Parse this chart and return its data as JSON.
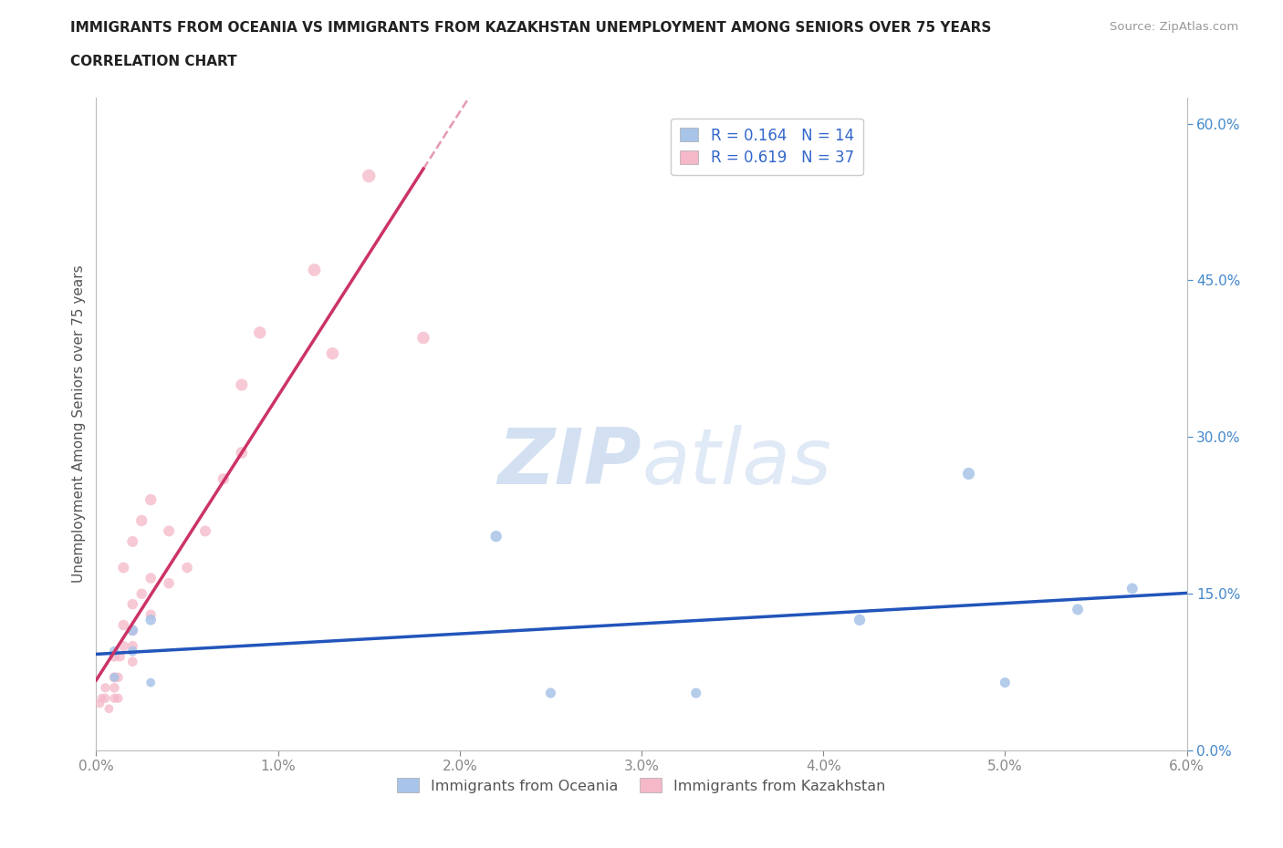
{
  "title_line1": "IMMIGRANTS FROM OCEANIA VS IMMIGRANTS FROM KAZAKHSTAN UNEMPLOYMENT AMONG SENIORS OVER 75 YEARS",
  "title_line2": "CORRELATION CHART",
  "source_text": "Source: ZipAtlas.com",
  "ylabel": "Unemployment Among Seniors over 75 years",
  "xmin": 0.0,
  "xmax": 0.06,
  "ymin": 0.0,
  "ymax": 0.625,
  "right_yticks": [
    0.0,
    0.15,
    0.3,
    0.45,
    0.6
  ],
  "right_yticklabels": [
    "0.0%",
    "15.0%",
    "30.0%",
    "45.0%",
    "60.0%"
  ],
  "xticks": [
    0.0,
    0.01,
    0.02,
    0.03,
    0.04,
    0.05,
    0.06
  ],
  "xticklabels": [
    "0.0%",
    "1.0%",
    "2.0%",
    "3.0%",
    "4.0%",
    "5.0%",
    "6.0%"
  ],
  "grid_color": "#cccccc",
  "watermark_zip": "ZIP",
  "watermark_atlas": "atlas",
  "watermark_color": "#c8d8f0",
  "legend_R1": "R = 0.164",
  "legend_N1": "N = 14",
  "legend_R2": "R = 0.619",
  "legend_N2": "N = 37",
  "legend_label1": "Immigrants from Oceania",
  "legend_label2": "Immigrants from Kazakhstan",
  "color_oceania": "#a8c4e8",
  "color_kazakhstan": "#f4b8c8",
  "trendline_oceania": "#2255bb",
  "trendline_kazakhstan": "#cc3366",
  "oceania_x": [
    0.001,
    0.001,
    0.002,
    0.002,
    0.003,
    0.003,
    0.022,
    0.025,
    0.033,
    0.042,
    0.048,
    0.05,
    0.054,
    0.057
  ],
  "oceania_y": [
    0.095,
    0.07,
    0.115,
    0.095,
    0.065,
    0.125,
    0.205,
    0.055,
    0.055,
    0.125,
    0.265,
    0.065,
    0.135,
    0.155
  ],
  "kazakhstan_x": [
    0.0002,
    0.0003,
    0.0005,
    0.0005,
    0.0007,
    0.001,
    0.001,
    0.001,
    0.001,
    0.0012,
    0.0012,
    0.0013,
    0.0015,
    0.0015,
    0.0015,
    0.002,
    0.002,
    0.002,
    0.002,
    0.002,
    0.0025,
    0.0025,
    0.003,
    0.003,
    0.003,
    0.004,
    0.004,
    0.005,
    0.006,
    0.007,
    0.008,
    0.008,
    0.009,
    0.012,
    0.013,
    0.015,
    0.018
  ],
  "kazakhstan_y": [
    0.045,
    0.05,
    0.05,
    0.06,
    0.04,
    0.05,
    0.06,
    0.07,
    0.09,
    0.05,
    0.07,
    0.09,
    0.1,
    0.12,
    0.175,
    0.085,
    0.1,
    0.115,
    0.14,
    0.2,
    0.15,
    0.22,
    0.13,
    0.165,
    0.24,
    0.16,
    0.21,
    0.175,
    0.21,
    0.26,
    0.285,
    0.35,
    0.4,
    0.46,
    0.38,
    0.55,
    0.395
  ],
  "oceania_sizes": [
    60,
    50,
    70,
    60,
    50,
    70,
    80,
    65,
    65,
    80,
    90,
    65,
    75,
    75
  ],
  "kazakhstan_sizes": [
    50,
    50,
    55,
    55,
    50,
    55,
    60,
    65,
    70,
    55,
    60,
    65,
    65,
    70,
    75,
    60,
    65,
    70,
    70,
    75,
    70,
    80,
    65,
    70,
    80,
    70,
    75,
    70,
    75,
    80,
    85,
    90,
    95,
    100,
    95,
    110,
    95
  ]
}
